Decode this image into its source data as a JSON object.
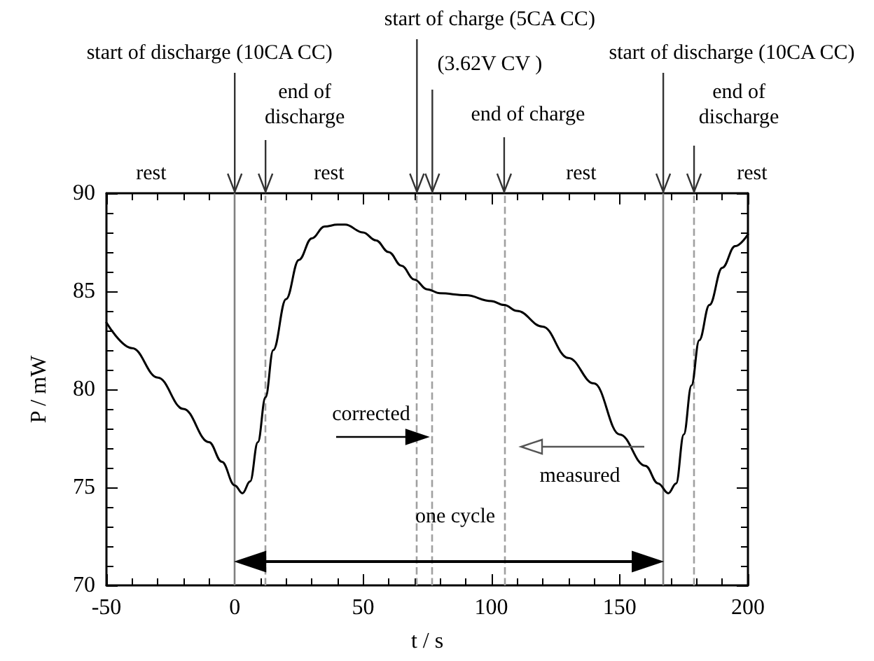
{
  "chart_data": {
    "type": "line",
    "xlabel": "t / s",
    "ylabel": "P / mW",
    "x": [
      -50,
      -40,
      -30,
      -20,
      -10,
      -5,
      0,
      3,
      6,
      9,
      12,
      15,
      20,
      25,
      30,
      35,
      40,
      43,
      50,
      55,
      60,
      65,
      70,
      75,
      80,
      90,
      100,
      105,
      110,
      120,
      130,
      140,
      150,
      160,
      165,
      169,
      172,
      175,
      178,
      181,
      185,
      190,
      195,
      200
    ],
    "series": [
      {
        "color": "#000000",
        "values": [
          83.4,
          82.1,
          80.6,
          79.0,
          77.3,
          76.3,
          75.1,
          74.7,
          75.3,
          77.3,
          79.6,
          82.0,
          84.6,
          86.6,
          87.7,
          88.3,
          88.4,
          88.4,
          88.0,
          87.6,
          87.0,
          86.3,
          85.6,
          85.1,
          84.9,
          84.8,
          84.5,
          84.3,
          84.0,
          83.2,
          81.6,
          80.3,
          77.7,
          76.1,
          75.2,
          74.7,
          75.2,
          77.7,
          80.2,
          82.5,
          84.3,
          86.2,
          87.3,
          87.9
        ]
      }
    ],
    "xlim": [
      -50,
      200
    ],
    "xticks": [
      -50,
      0,
      50,
      100,
      150,
      200
    ],
    "ylim": [
      70,
      90
    ],
    "yticks": [
      70,
      75,
      80,
      85,
      90
    ],
    "marker": "none",
    "line_style": "solid",
    "ref_lines": [
      {
        "axis": "x",
        "value": 0,
        "label": "start of discharge (10CA CC)",
        "color": "#808080",
        "line_style": "solid"
      },
      {
        "axis": "x",
        "value": 12,
        "label": "end of discharge",
        "color": "#a0a0a0",
        "line_style": "dashed"
      },
      {
        "axis": "x",
        "value": 71,
        "label": "start of charge (5CA CC)",
        "color": "#a0a0a0",
        "line_style": "dashed"
      },
      {
        "axis": "x",
        "value": 77,
        "label": "(3.62V CV )",
        "color": "#a0a0a0",
        "line_style": "dashed"
      },
      {
        "axis": "x",
        "value": 105,
        "label": "end of charge",
        "color": "#a0a0a0",
        "line_style": "dashed"
      },
      {
        "axis": "x",
        "value": 167,
        "label": "start of discharge (10CA CC)",
        "color": "#808080",
        "line_style": "solid"
      },
      {
        "axis": "x",
        "value": 179,
        "label": "end of discharge",
        "color": "#a0a0a0",
        "line_style": "dashed"
      }
    ],
    "annotations": [
      "rest",
      "rest",
      "rest",
      "rest",
      "corrected",
      "measured",
      "one cycle"
    ]
  }
}
